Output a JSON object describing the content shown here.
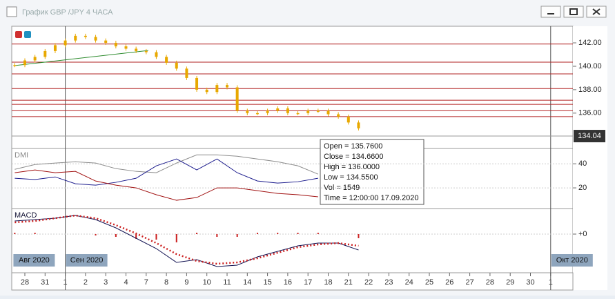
{
  "window": {
    "title": "График GBP /JPY  4 ЧАСА"
  },
  "x_axis": {
    "ticks": [
      {
        "value": 0,
        "label": "28"
      },
      {
        "value": 1,
        "label": "31"
      },
      {
        "value": 2,
        "label": "1"
      },
      {
        "value": 3,
        "label": "2"
      },
      {
        "value": 4,
        "label": "3"
      },
      {
        "value": 5,
        "label": "4"
      },
      {
        "value": 6,
        "label": "7"
      },
      {
        "value": 7,
        "label": "8"
      },
      {
        "value": 8,
        "label": "9"
      },
      {
        "value": 9,
        "label": "10"
      },
      {
        "value": 10,
        "label": "11"
      },
      {
        "value": 11,
        "label": "14"
      },
      {
        "value": 12,
        "label": "15"
      },
      {
        "value": 13,
        "label": "16"
      },
      {
        "value": 14,
        "label": "17"
      },
      {
        "value": 15,
        "label": "18"
      },
      {
        "value": 16,
        "label": "21"
      },
      {
        "value": 17,
        "label": "22"
      },
      {
        "value": 18,
        "label": "23"
      },
      {
        "value": 19,
        "label": "24"
      },
      {
        "value": 20,
        "label": "25"
      },
      {
        "value": 21,
        "label": "26"
      },
      {
        "value": 22,
        "label": "27"
      },
      {
        "value": 23,
        "label": "28"
      },
      {
        "value": 24,
        "label": "29"
      },
      {
        "value": 25,
        "label": "30"
      },
      {
        "value": 26,
        "label": "1"
      }
    ],
    "months": [
      {
        "value": -0.6,
        "label": "Авг 2020"
      },
      {
        "value": 2,
        "label": "Сен 2020"
      },
      {
        "value": 26,
        "label": "Окт 2020"
      }
    ]
  },
  "chart_data": [
    {
      "type": "candlestick",
      "x": [
        -0.5,
        0,
        0.5,
        1,
        1.5,
        2,
        2.5,
        3,
        3.5,
        4,
        4.5,
        5,
        5.5,
        6,
        6.5,
        7,
        7.5,
        8,
        8.5,
        9,
        9.5,
        10,
        10.5,
        11,
        11.5,
        12,
        12.5,
        13,
        13.5,
        14,
        14.5,
        15,
        15.5,
        16,
        16.5
      ],
      "close": [
        140.1,
        140.5,
        140.8,
        141.3,
        141.8,
        142.2,
        142.6,
        142.5,
        142.2,
        142.0,
        141.7,
        141.5,
        141.3,
        141.2,
        140.8,
        140.3,
        139.8,
        139.0,
        138.0,
        137.8,
        138.4,
        138.2,
        136.2,
        136.0,
        136.0,
        136.2,
        136.4,
        136.0,
        136.0,
        136.2,
        136.2,
        135.9,
        135.7,
        135.2,
        134.7
      ],
      "color": "#e8a800",
      "ylim": [
        133.1,
        143.3
      ],
      "yticks": [
        {
          "value": 136,
          "label": "136.00"
        },
        {
          "value": 138,
          "label": "138.00"
        },
        {
          "value": 140,
          "label": "140.00"
        },
        {
          "value": 142,
          "label": "142.00"
        }
      ],
      "levels": [
        141.9,
        140.35,
        139.35,
        138.1,
        137.1,
        136.75,
        136.2,
        135.7
      ],
      "level_color": "#b22222",
      "trend_line": {
        "x": [
          -0.55,
          6.1
        ],
        "y": [
          140.05,
          141.35
        ],
        "color": "#2e8b2e"
      },
      "last_price": 134.04,
      "tooltip": [
        "Open = 135.7600",
        "Close = 134.6600",
        "High = 136.0000",
        "Low = 134.5500",
        "Vol = 1549",
        "Time = 12:00:00 17.09.2020"
      ]
    },
    {
      "type": "line",
      "title": "DMI",
      "x": [
        -0.5,
        0.5,
        1.5,
        2.5,
        3.5,
        4.5,
        5.5,
        6.5,
        7.5,
        8.5,
        9.5,
        10.5,
        11.5,
        12.5,
        13.5,
        14.5
      ],
      "ylim": [
        4,
        51
      ],
      "yticks": [
        20,
        40
      ],
      "series": [
        {
          "color": "#8c8c8c",
          "values": [
            35.4,
            39.4,
            40.6,
            41.7,
            40.6,
            36,
            33.7,
            32.6,
            40.6,
            47.4,
            47.4,
            46.3,
            44,
            41.7,
            38.3,
            31.4
          ]
        },
        {
          "color": "#1a1a8c",
          "values": [
            28,
            26.9,
            29.1,
            23.4,
            22.3,
            24.6,
            28,
            38.3,
            44,
            34.9,
            44,
            32.6,
            25.7,
            24,
            25.1,
            28
          ]
        },
        {
          "color": "#a01010",
          "values": [
            32.6,
            34.9,
            32.6,
            33.7,
            25.7,
            22.3,
            20,
            14.3,
            9.7,
            12,
            20,
            20,
            17.7,
            15.4,
            14.3,
            12.6
          ]
        }
      ]
    },
    {
      "type": "macd",
      "title": "MACD",
      "x": [
        -0.5,
        0.5,
        1.5,
        2.5,
        3.5,
        4.5,
        5.5,
        6.5,
        7.5,
        8.5,
        9.5,
        10.5,
        11.5,
        12.5,
        13.5,
        14.5,
        15.5,
        16.5
      ],
      "ylim": [
        -53,
        34
      ],
      "yticks": [
        {
          "value": 0,
          "label": "+0"
        }
      ],
      "series": [
        {
          "color": "#101050",
          "values": [
            19,
            21,
            23,
            27,
            21,
            9,
            -6,
            -21,
            -41,
            -37,
            -47,
            -45,
            -33,
            -25,
            -17,
            -13,
            -13,
            -23
          ]
        },
        {
          "color": "#cc2020",
          "values": [
            17,
            19,
            23,
            27,
            23,
            13,
            1,
            -13,
            -29,
            -39,
            -43,
            -41,
            -35,
            -27,
            -19,
            -15,
            -13,
            -17
          ]
        },
        {
          "color": "#cc2020",
          "values": [
            2,
            2,
            0,
            0,
            -2,
            -4,
            -7,
            -8,
            -12,
            2,
            -4,
            -4,
            2,
            2,
            2,
            2,
            0,
            -6
          ]
        }
      ]
    }
  ]
}
